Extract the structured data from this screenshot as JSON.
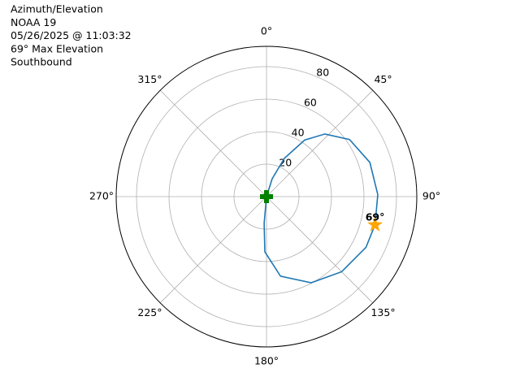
{
  "chart_data": {
    "type": "polar",
    "title_lines": [
      "Azimuth/Elevation",
      "NOAA 19",
      "05/26/2025 @ 11:03:32",
      "69° Max Elevation",
      "Southbound"
    ],
    "xticks": [
      {
        "value": 0,
        "label": "0°"
      },
      {
        "value": 45,
        "label": "45°"
      },
      {
        "value": 90,
        "label": "90°"
      },
      {
        "value": 135,
        "label": "135°"
      },
      {
        "value": 180,
        "label": "180°"
      },
      {
        "value": 225,
        "label": "225°"
      },
      {
        "value": 270,
        "label": "270°"
      },
      {
        "value": 315,
        "label": "315°"
      }
    ],
    "ylim": [
      0,
      92.5
    ],
    "yticks": [
      20,
      40,
      60,
      80
    ],
    "grid": true,
    "series": [
      {
        "color": "#1f77b4",
        "x": [
          0,
          17.6,
          25,
          34,
          43,
          55.5,
          71.7,
          89,
          104.6,
          117,
          135,
          152.6,
          170,
          181.7,
          185,
          0
        ],
        "values": [
          0,
          11.5,
          26,
          42,
          52.7,
          62,
          67,
          68.5,
          69,
          68.7,
          65.4,
          59.7,
          49.7,
          34,
          16.6,
          0
        ]
      }
    ],
    "max_point": {
      "x": 104.6,
      "value": 69,
      "value_label": "69°",
      "color": "#ffa500"
    },
    "start_point": {
      "x": 0,
      "value": 0,
      "color": "#008000"
    }
  }
}
